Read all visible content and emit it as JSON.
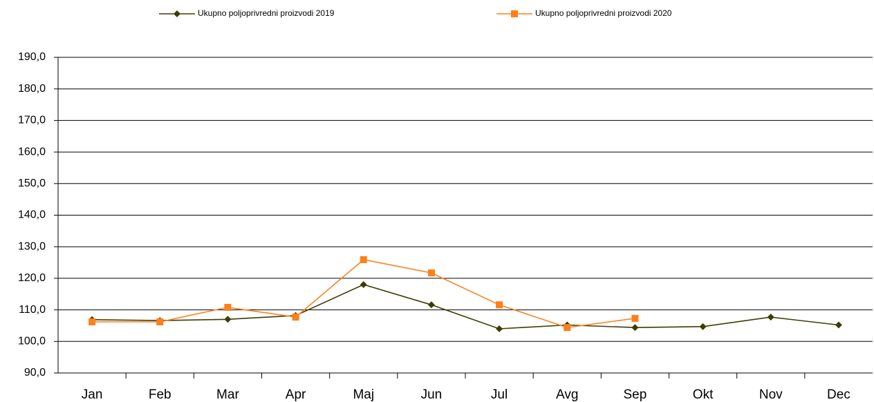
{
  "chart_data": {
    "type": "line",
    "categories": [
      "Jan",
      "Feb",
      "Mar",
      "Apr",
      "Maj",
      "Jun",
      "Jul",
      "Avg",
      "Sep",
      "Okt",
      "Nov",
      "Dec"
    ],
    "series": [
      {
        "name": "Ukupno poljoprivredni proizvodi  2019",
        "color": "#3d3d00",
        "marker": "diamond",
        "values": [
          106.9,
          106.6,
          107.0,
          108.2,
          118.0,
          111.6,
          104.0,
          105.2,
          104.4,
          104.7,
          107.7,
          105.2
        ]
      },
      {
        "name": "Ukupno poljoprivredni proizvodi  2020",
        "color": "#ff7f1a",
        "marker": "square",
        "values": [
          106.2,
          106.2,
          110.8,
          107.7,
          125.9,
          121.7,
          111.6,
          104.4,
          107.3,
          null,
          null,
          null
        ]
      }
    ],
    "ylim": [
      90,
      190
    ],
    "yticks": [
      {
        "value": 90,
        "label": "90,0"
      },
      {
        "value": 100,
        "label": "100,0"
      },
      {
        "value": 110,
        "label": "110,0"
      },
      {
        "value": 120,
        "label": "120,0"
      },
      {
        "value": 130,
        "label": "130,0"
      },
      {
        "value": 140,
        "label": "140,0"
      },
      {
        "value": 150,
        "label": "150,0"
      },
      {
        "value": 160,
        "label": "160,0"
      },
      {
        "value": 170,
        "label": "170,0"
      },
      {
        "value": 180,
        "label": "180,0"
      },
      {
        "value": 190,
        "label": "190,0"
      }
    ],
    "grid": true,
    "legend": "top"
  }
}
